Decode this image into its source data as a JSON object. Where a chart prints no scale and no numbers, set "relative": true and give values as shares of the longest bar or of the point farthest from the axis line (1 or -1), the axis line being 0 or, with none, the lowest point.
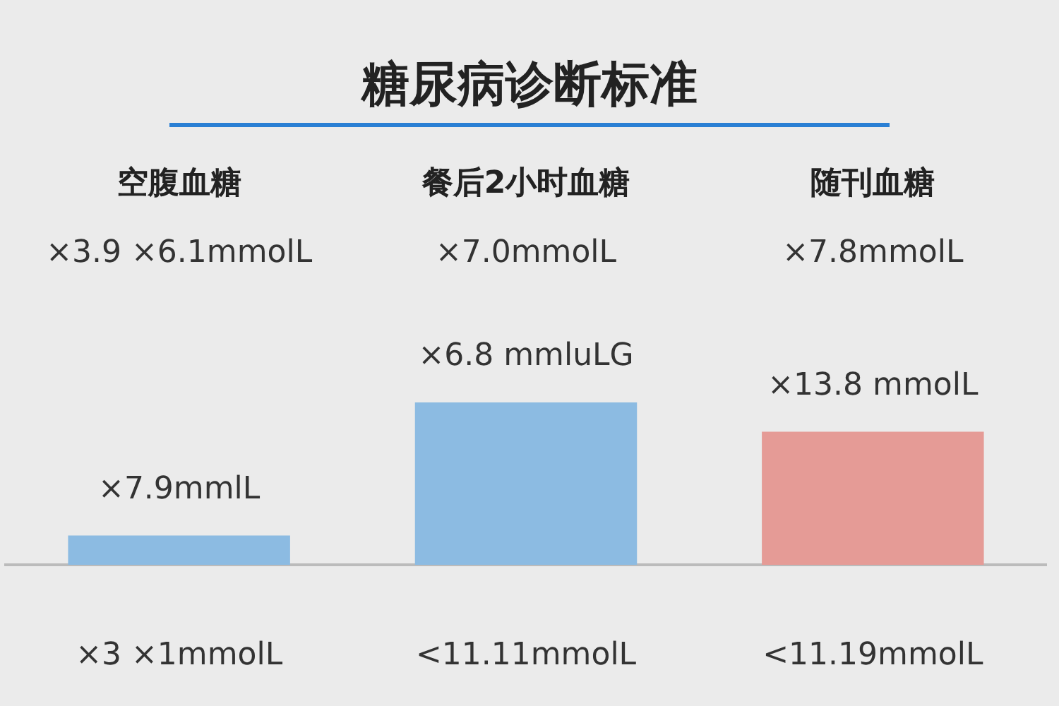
{
  "chart_data": {
    "type": "bar",
    "title": "糖尿病诊断标准",
    "categories": [
      "空腹血糖",
      "餐后2小时血糖",
      "随刊血糖"
    ],
    "values": [
      0.18,
      1,
      0.82
    ],
    "colors": [
      "#8cbbe2",
      "#8cbbe2",
      "#e59b96"
    ],
    "relative": true,
    "annotations": [
      "×3.9 ×6.1mmolL",
      "×7.0mmolL",
      "×7.8mmolL",
      "×7.9mmlL",
      "×6.8 mmluLG",
      "×13.8 mmolL",
      "×3 ×1mmolL",
      "<11.11mmolL",
      "<11.19mmolL"
    ]
  }
}
